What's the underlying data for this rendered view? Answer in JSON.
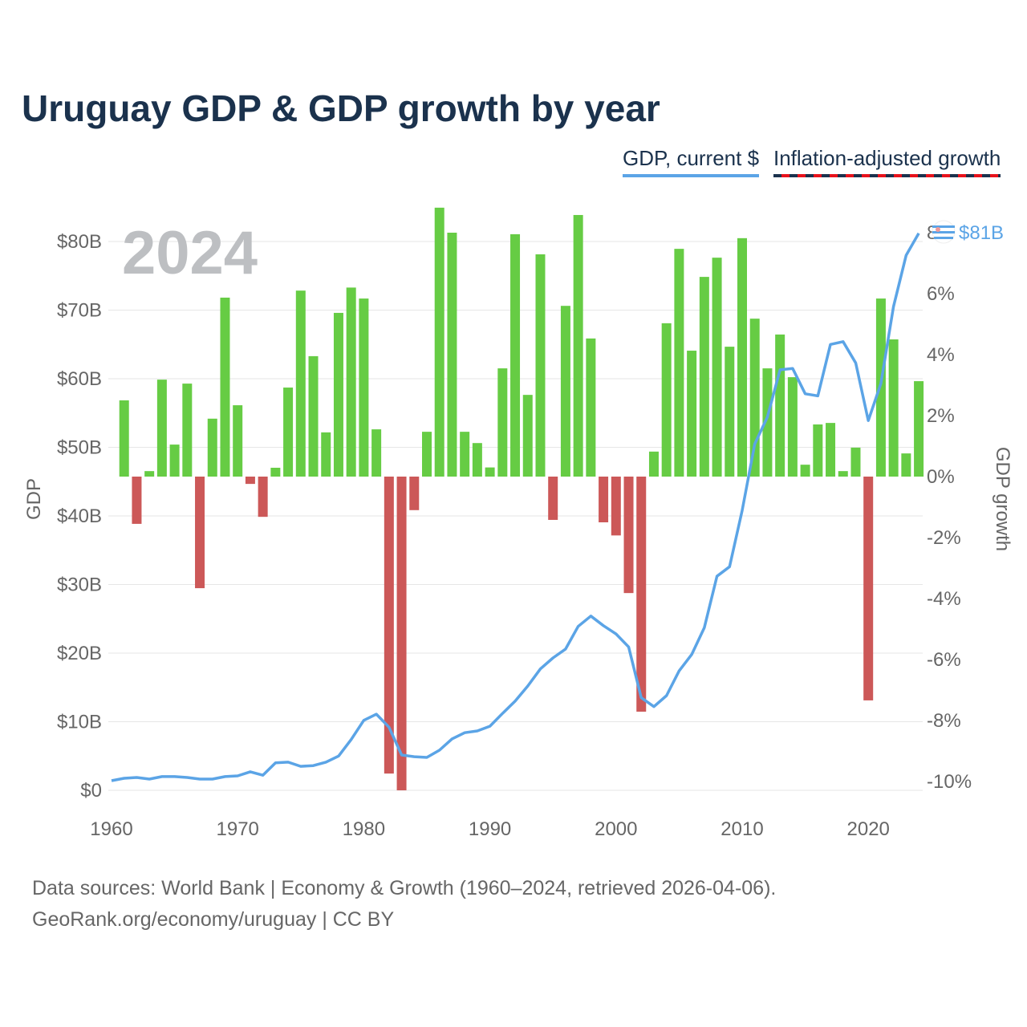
{
  "title": "Uruguay GDP & GDP growth by year",
  "legend": {
    "gdp": "GDP, current $",
    "growth": "Inflation-adjusted growth"
  },
  "year_label": "2024",
  "end_label": "$81B",
  "footer": {
    "line1": "Data sources: World Bank | Economy & Growth (1960–2024, retrieved 2026-04-06).",
    "line2": "GeoRank.org/economy/uruguay | CC BY"
  },
  "colors": {
    "gdp_line": "#5ba4e6",
    "growth_positive": "#66cc44",
    "growth_negative": "#cc5858",
    "title": "#1b324d"
  },
  "chart_data": {
    "type": "bar+line",
    "title": "Uruguay GDP & GDP growth by year",
    "xlabel": "",
    "ylabel_left": "GDP",
    "ylabel_right": "GDP growth",
    "xlim": [
      1960,
      2024
    ],
    "ylim_left": [
      0,
      80
    ],
    "ylim_right": [
      -10,
      8
    ],
    "x_ticks": [
      "1960",
      "1970",
      "1980",
      "1990",
      "2000",
      "2010",
      "2020"
    ],
    "left_ticks": [
      "$0",
      "$10B",
      "$20B",
      "$30B",
      "$40B",
      "$50B",
      "$60B",
      "$70B",
      "$80B"
    ],
    "right_ticks": [
      "-10%",
      "-8%",
      "-6%",
      "-4%",
      "-2%",
      "0%",
      "2%",
      "4%",
      "6%",
      "8%"
    ],
    "grid": true,
    "legend_position": "top-right",
    "gdp_series": {
      "name": "GDP, current $ (billions)",
      "x": [
        1960,
        1961,
        1962,
        1963,
        1964,
        1965,
        1966,
        1967,
        1968,
        1969,
        1970,
        1971,
        1972,
        1973,
        1974,
        1975,
        1976,
        1977,
        1978,
        1979,
        1980,
        1981,
        1982,
        1983,
        1984,
        1985,
        1986,
        1987,
        1988,
        1989,
        1990,
        1991,
        1992,
        1993,
        1994,
        1995,
        1996,
        1997,
        1998,
        1999,
        2000,
        2001,
        2002,
        2003,
        2004,
        2005,
        2006,
        2007,
        2008,
        2009,
        2010,
        2011,
        2012,
        2013,
        2014,
        2015,
        2016,
        2017,
        2018,
        2019,
        2020,
        2021,
        2022,
        2023,
        2024
      ],
      "values": [
        1.4,
        1.75,
        1.87,
        1.64,
        2.0,
        2.0,
        1.87,
        1.64,
        1.64,
        2.0,
        2.1,
        2.7,
        2.2,
        4.0,
        4.1,
        3.5,
        3.6,
        4.1,
        5.0,
        7.4,
        10.2,
        11.1,
        9.2,
        5.15,
        4.9,
        4.8,
        5.85,
        7.5,
        8.4,
        8.65,
        9.35,
        11.2,
        13.0,
        15.2,
        17.7,
        19.3,
        20.6,
        23.9,
        25.4,
        24.0,
        22.8,
        20.9,
        13.5,
        12.2,
        13.8,
        17.4,
        19.8,
        23.7,
        31.2,
        32.6,
        40.8,
        50.5,
        54.4,
        61.3,
        61.5,
        57.8,
        57.5,
        65.0,
        65.4,
        62.3,
        53.9,
        59.3,
        70.5,
        78.0,
        81.2
      ]
    },
    "growth_series": {
      "name": "Inflation-adjusted growth (%)",
      "x": [
        1961,
        1962,
        1963,
        1964,
        1965,
        1966,
        1967,
        1968,
        1969,
        1970,
        1971,
        1972,
        1973,
        1974,
        1975,
        1976,
        1977,
        1978,
        1979,
        1980,
        1981,
        1982,
        1983,
        1984,
        1985,
        1986,
        1987,
        1988,
        1989,
        1990,
        1991,
        1992,
        1993,
        1994,
        1995,
        1996,
        1997,
        1998,
        1999,
        2000,
        2001,
        2002,
        2003,
        2004,
        2005,
        2006,
        2007,
        2008,
        2009,
        2010,
        2011,
        2012,
        2013,
        2014,
        2015,
        2016,
        2017,
        2018,
        2019,
        2020,
        2021,
        2022,
        2023,
        2024
      ],
      "values": [
        2.5,
        -1.55,
        0.18,
        3.18,
        1.05,
        3.05,
        -3.66,
        1.9,
        5.87,
        2.34,
        -0.24,
        -1.32,
        0.29,
        2.92,
        6.1,
        3.95,
        1.45,
        5.37,
        6.2,
        5.84,
        1.55,
        -9.74,
        -10.29,
        -1.1,
        1.47,
        8.82,
        8.0,
        1.47,
        1.1,
        0.3,
        3.55,
        7.95,
        2.68,
        7.29,
        -1.42,
        5.6,
        8.58,
        4.53,
        -1.5,
        -1.93,
        -3.82,
        -7.71,
        0.82,
        5.03,
        7.47,
        4.13,
        6.55,
        7.18,
        4.26,
        7.82,
        5.18,
        3.55,
        4.66,
        3.26,
        0.39,
        1.71,
        1.76,
        0.18,
        0.95,
        -7.34,
        5.84,
        4.5,
        0.76,
        3.13
      ]
    }
  }
}
